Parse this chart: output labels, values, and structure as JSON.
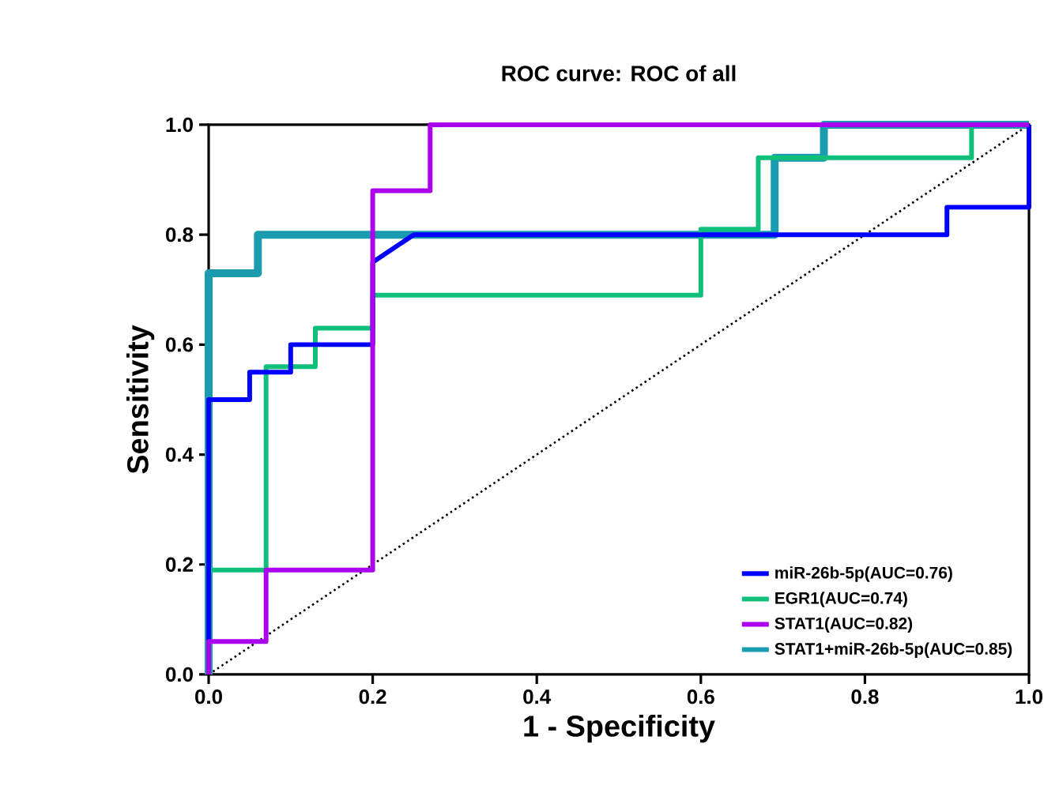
{
  "chart_data": {
    "type": "line",
    "title": "ROC curve: ROC of all",
    "xlabel": "1 - Specificity",
    "ylabel": "Sensitivity",
    "xlim": [
      0,
      1
    ],
    "ylim": [
      0,
      1
    ],
    "xticks": [
      {
        "value": 0,
        "label": "0.0"
      },
      {
        "value": 0.2,
        "label": "0.2"
      },
      {
        "value": 0.4,
        "label": "0.4"
      },
      {
        "value": 0.6,
        "label": "0.6"
      },
      {
        "value": 0.8,
        "label": "0.8"
      },
      {
        "value": 1,
        "label": "1.0"
      }
    ],
    "yticks": [
      {
        "value": 0,
        "label": "0.0"
      },
      {
        "value": 0.2,
        "label": "0.2"
      },
      {
        "value": 0.4,
        "label": "0.4"
      },
      {
        "value": 0.6,
        "label": "0.6"
      },
      {
        "value": 0.8,
        "label": "0.8"
      },
      {
        "value": 1,
        "label": "1.0"
      }
    ],
    "grid": false,
    "legend": "bottom right",
    "marker": "none",
    "series": [
      {
        "name": "miR-26b-5p(AUC=0.76)",
        "color": "#0000ff",
        "x": [
          0,
          0,
          0.05,
          0.05,
          0.1,
          0.1,
          0.2,
          0.2,
          0.25,
          0.9,
          0.9,
          1,
          1
        ],
        "values": [
          0,
          0.5,
          0.5,
          0.55,
          0.55,
          0.6,
          0.6,
          0.75,
          0.8,
          0.8,
          0.85,
          0.85,
          1
        ]
      },
      {
        "name": "EGR1(AUC=0.74)",
        "color": "#10c07a",
        "x": [
          0,
          0,
          0.07,
          0.07,
          0.13,
          0.13,
          0.2,
          0.2,
          0.6,
          0.6,
          0.67,
          0.67,
          0.93,
          0.93,
          1
        ],
        "values": [
          0,
          0.19,
          0.19,
          0.56,
          0.56,
          0.63,
          0.63,
          0.69,
          0.69,
          0.81,
          0.81,
          0.94,
          0.94,
          1,
          1
        ]
      },
      {
        "name": "STAT1(AUC=0.82)",
        "color": "#aa00ee",
        "x": [
          0,
          0,
          0.07,
          0.07,
          0.2,
          0.2,
          0.27,
          0.27,
          1
        ],
        "values": [
          0,
          0.06,
          0.06,
          0.19,
          0.19,
          0.88,
          0.88,
          1,
          1
        ]
      },
      {
        "name": "STAT1+miR-26b-5p(AUC=0.85)",
        "color": "#1a9bb0",
        "x": [
          0,
          0,
          0.06,
          0.06,
          0.69,
          0.69,
          0.75,
          0.75,
          1
        ],
        "values": [
          0,
          0.73,
          0.73,
          0.8,
          0.8,
          0.94,
          0.94,
          1,
          1
        ]
      },
      {
        "color": "#000000",
        "line_style": "dotted",
        "x": [
          0,
          1
        ],
        "values": [
          0,
          1
        ]
      }
    ]
  }
}
